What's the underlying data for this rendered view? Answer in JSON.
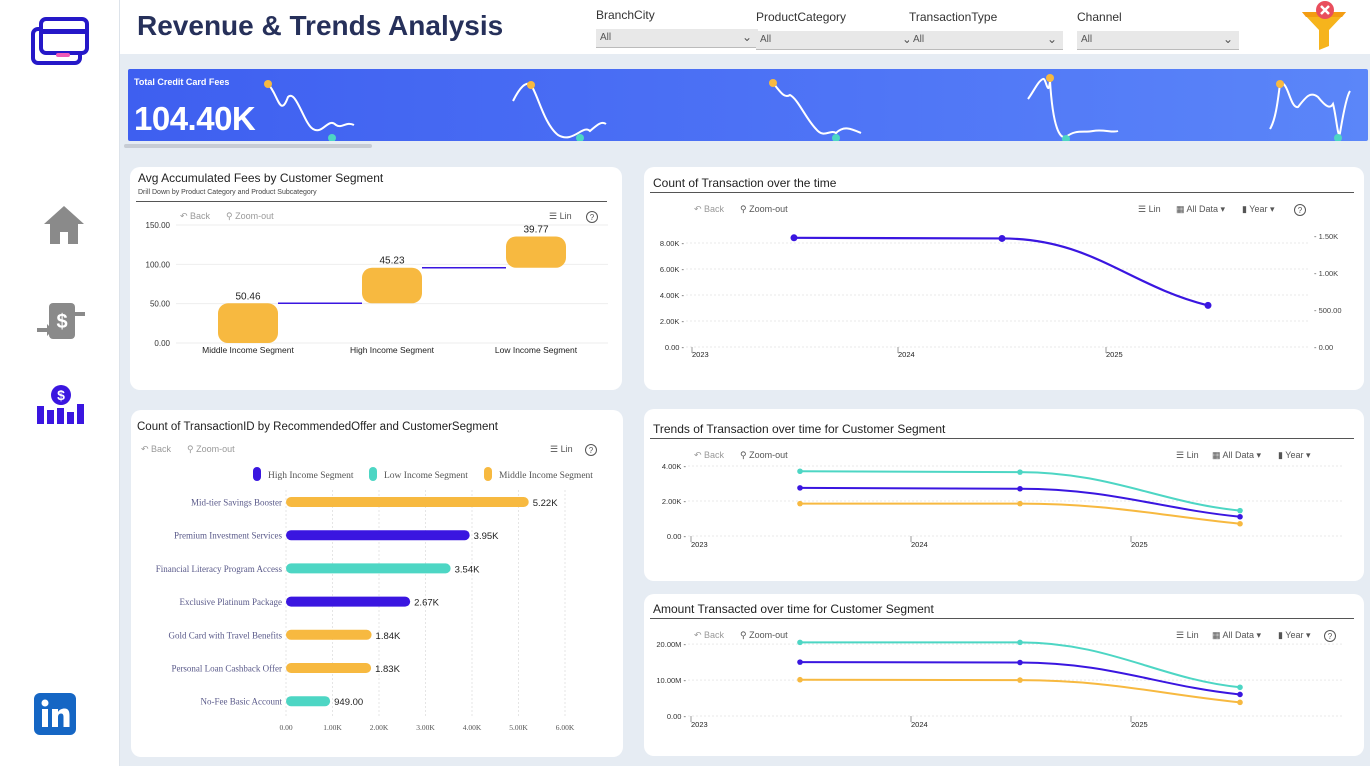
{
  "header": {
    "title": "Revenue & Trends Analysis",
    "filters": [
      {
        "label": "BranchCity",
        "value": "All"
      },
      {
        "label": "ProductCategory",
        "value": "All"
      },
      {
        "label": "TransactionType",
        "value": "All"
      },
      {
        "label": "Channel",
        "value": "All"
      }
    ]
  },
  "sidebar": {
    "items": [
      "credit-card-icon",
      "home-icon",
      "money-transfer-icon",
      "revenue-chart-icon",
      "linkedin-icon"
    ]
  },
  "kpi": {
    "label": "Total Credit Card Fees",
    "value": "104.40K"
  },
  "toolbar": {
    "back": "Back",
    "zoom_out": "Zoom-out",
    "lin": "Lin",
    "all_data": "All Data",
    "year": "Year",
    "help": "?"
  },
  "colors": {
    "high": "#3a16e0",
    "low": "#4dd6c4",
    "middle": "#f7b940",
    "kpi_band": "#4f75f6",
    "title_text": "#26305a"
  },
  "cards": {
    "avg_fees": {
      "title": "Avg Accumulated Fees by Customer Segment",
      "subtitle": "Drill Down by Product Category and Product Subcategory"
    },
    "count_time": {
      "title": "Count of Transaction over the time"
    },
    "offers": {
      "title": "Count of TransactionID by RecommendedOffer and CustomerSegment"
    },
    "trends_segment": {
      "title": "Trends of Transaction over time for Customer Segment"
    },
    "amount_segment": {
      "title": "Amount Transacted over time for Customer Segment"
    }
  },
  "chart_data": [
    {
      "id": "avg_fees",
      "type": "bar",
      "title": "Avg Accumulated Fees by Customer Segment",
      "categories": [
        "Middle Income Segment",
        "High Income Segment",
        "Low Income Segment"
      ],
      "values": [
        50.46,
        45.23,
        39.77
      ],
      "labels": [
        "50.46",
        "45.23",
        "39.77"
      ],
      "ylim": [
        0,
        150
      ],
      "yticks": [
        "0.00",
        "50.00",
        "100.00",
        "150.00"
      ],
      "grid": true
    },
    {
      "id": "count_time",
      "type": "line",
      "title": "Count of Transaction over the time",
      "xticks": [
        "2023",
        "2024",
        "2025"
      ],
      "yticks_left": [
        "0.00",
        "2.00K",
        "4.00K",
        "6.00K",
        "8.00K"
      ],
      "yticks_right": [
        "0.00",
        "500.00",
        "1.00K",
        "1.50K"
      ],
      "series": [
        {
          "values": [
            8400,
            8350,
            3200
          ]
        }
      ],
      "ylim": [
        0,
        9000
      ]
    },
    {
      "id": "offers",
      "type": "bar",
      "orientation": "horizontal",
      "title": "Count of TransactionID by RecommendedOffer and CustomerSegment",
      "legend": [
        "High Income Segment",
        "Low Income Segment",
        "Middle Income Segment"
      ],
      "categories": [
        "Mid-tier Savings Booster",
        "Premium Investment Services",
        "Financial Literacy Program Access",
        "Exclusive Platinum Package",
        "Gold Card with Travel Benefits",
        "Personal Loan Cashback Offer",
        "No-Fee Basic Account"
      ],
      "segments": [
        "Middle Income Segment",
        "High Income Segment",
        "Low Income Segment",
        "High Income Segment",
        "Middle Income Segment",
        "Middle Income Segment",
        "Low Income Segment"
      ],
      "values": [
        5220,
        3950,
        3540,
        2670,
        1840,
        1830,
        949
      ],
      "labels": [
        "5.22K",
        "3.95K",
        "3.54K",
        "2.67K",
        "1.84K",
        "1.83K",
        "949.00"
      ],
      "xticks": [
        "0.00",
        "1.00K",
        "2.00K",
        "3.00K",
        "4.00K",
        "5.00K",
        "6.00K"
      ],
      "xlim": [
        0,
        6000
      ]
    },
    {
      "id": "trends_segment",
      "type": "line",
      "title": "Trends of Transaction over time for Customer Segment",
      "xticks": [
        "2023",
        "2024",
        "2025"
      ],
      "yticks": [
        "0.00",
        "2.00K",
        "4.00K"
      ],
      "ylim": [
        0,
        4400
      ],
      "series": [
        {
          "name": "Low Income Segment",
          "values": [
            3700,
            3650,
            1450
          ]
        },
        {
          "name": "High Income Segment",
          "values": [
            2750,
            2700,
            1100
          ]
        },
        {
          "name": "Middle Income Segment",
          "values": [
            1850,
            1850,
            700
          ]
        }
      ]
    },
    {
      "id": "amount_segment",
      "type": "line",
      "title": "Amount Transacted over time for Customer Segment",
      "xticks": [
        "2023",
        "2024",
        "2025"
      ],
      "yticks": [
        "0.00",
        "10.00M",
        "20.00M"
      ],
      "ylim": [
        0,
        22000000
      ],
      "series": [
        {
          "name": "Low Income Segment",
          "values": [
            20500000,
            20500000,
            8000000
          ]
        },
        {
          "name": "High Income Segment",
          "values": [
            15000000,
            14900000,
            6000000
          ]
        },
        {
          "name": "Middle Income Segment",
          "values": [
            10100000,
            10000000,
            3800000
          ]
        }
      ]
    }
  ]
}
